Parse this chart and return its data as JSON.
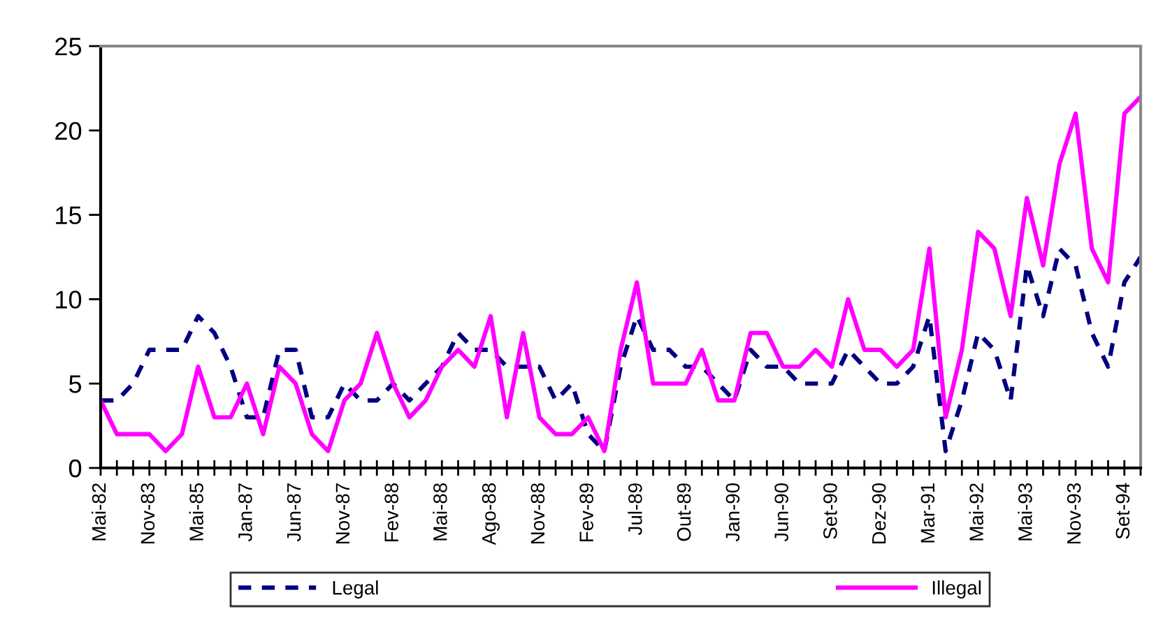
{
  "chart_data": {
    "type": "line",
    "categories": [
      "Mai-82",
      null,
      null,
      "Nov-83",
      null,
      null,
      "Mai-85",
      null,
      null,
      "Jan-87",
      null,
      null,
      "Jun-87",
      null,
      null,
      "Nov-87",
      null,
      null,
      "Fev-88",
      null,
      null,
      "Mai-88",
      null,
      null,
      "Ago-88",
      null,
      null,
      "Nov-88",
      null,
      null,
      "Fev-89",
      null,
      null,
      "Jul-89",
      null,
      null,
      "Out-89",
      null,
      null,
      "Jan-90",
      null,
      null,
      "Jun-90",
      null,
      null,
      "Set-90",
      null,
      null,
      "Dez-90",
      null,
      null,
      "Mar-91",
      null,
      null,
      "Mai-92",
      null,
      null,
      "Mai-93",
      null,
      null,
      "Nov-93",
      null,
      null,
      "Set-94",
      null
    ],
    "series": [
      {
        "name": "Legal",
        "color": "#000080",
        "line_style": "dashed",
        "values": [
          4,
          4,
          5,
          7,
          7,
          7,
          9,
          8,
          6,
          3,
          3,
          7,
          7,
          3,
          3,
          5,
          4,
          4,
          5,
          4,
          5,
          6,
          8,
          7,
          7,
          6,
          6,
          6,
          4,
          5,
          2,
          1,
          6,
          9,
          7,
          7,
          6,
          6,
          5,
          4,
          7,
          6,
          6,
          5,
          5,
          5,
          7,
          6,
          5,
          5,
          6,
          9,
          1,
          4,
          8,
          7,
          4,
          12,
          9,
          13,
          12,
          8,
          6,
          11,
          12.5
        ]
      },
      {
        "name": "Illegal",
        "color": "#ff00ff",
        "line_style": "solid",
        "values": [
          4,
          2,
          2,
          2,
          1,
          2,
          6,
          3,
          3,
          5,
          2,
          6,
          5,
          2,
          1,
          4,
          5,
          8,
          5,
          3,
          4,
          6,
          7,
          6,
          9,
          3,
          8,
          3,
          2,
          2,
          3,
          1,
          7,
          11,
          5,
          5,
          5,
          7,
          4,
          4,
          8,
          8,
          6,
          6,
          7,
          6,
          10,
          7,
          7,
          6,
          7,
          13,
          3,
          7,
          14,
          13,
          9,
          16,
          12,
          18,
          21,
          13,
          11,
          21,
          22
        ]
      }
    ],
    "ylim": [
      0,
      25
    ],
    "yticks": [
      0,
      5,
      10,
      15,
      20,
      25
    ],
    "grid": false,
    "legend": "bottom",
    "marker": "none"
  }
}
